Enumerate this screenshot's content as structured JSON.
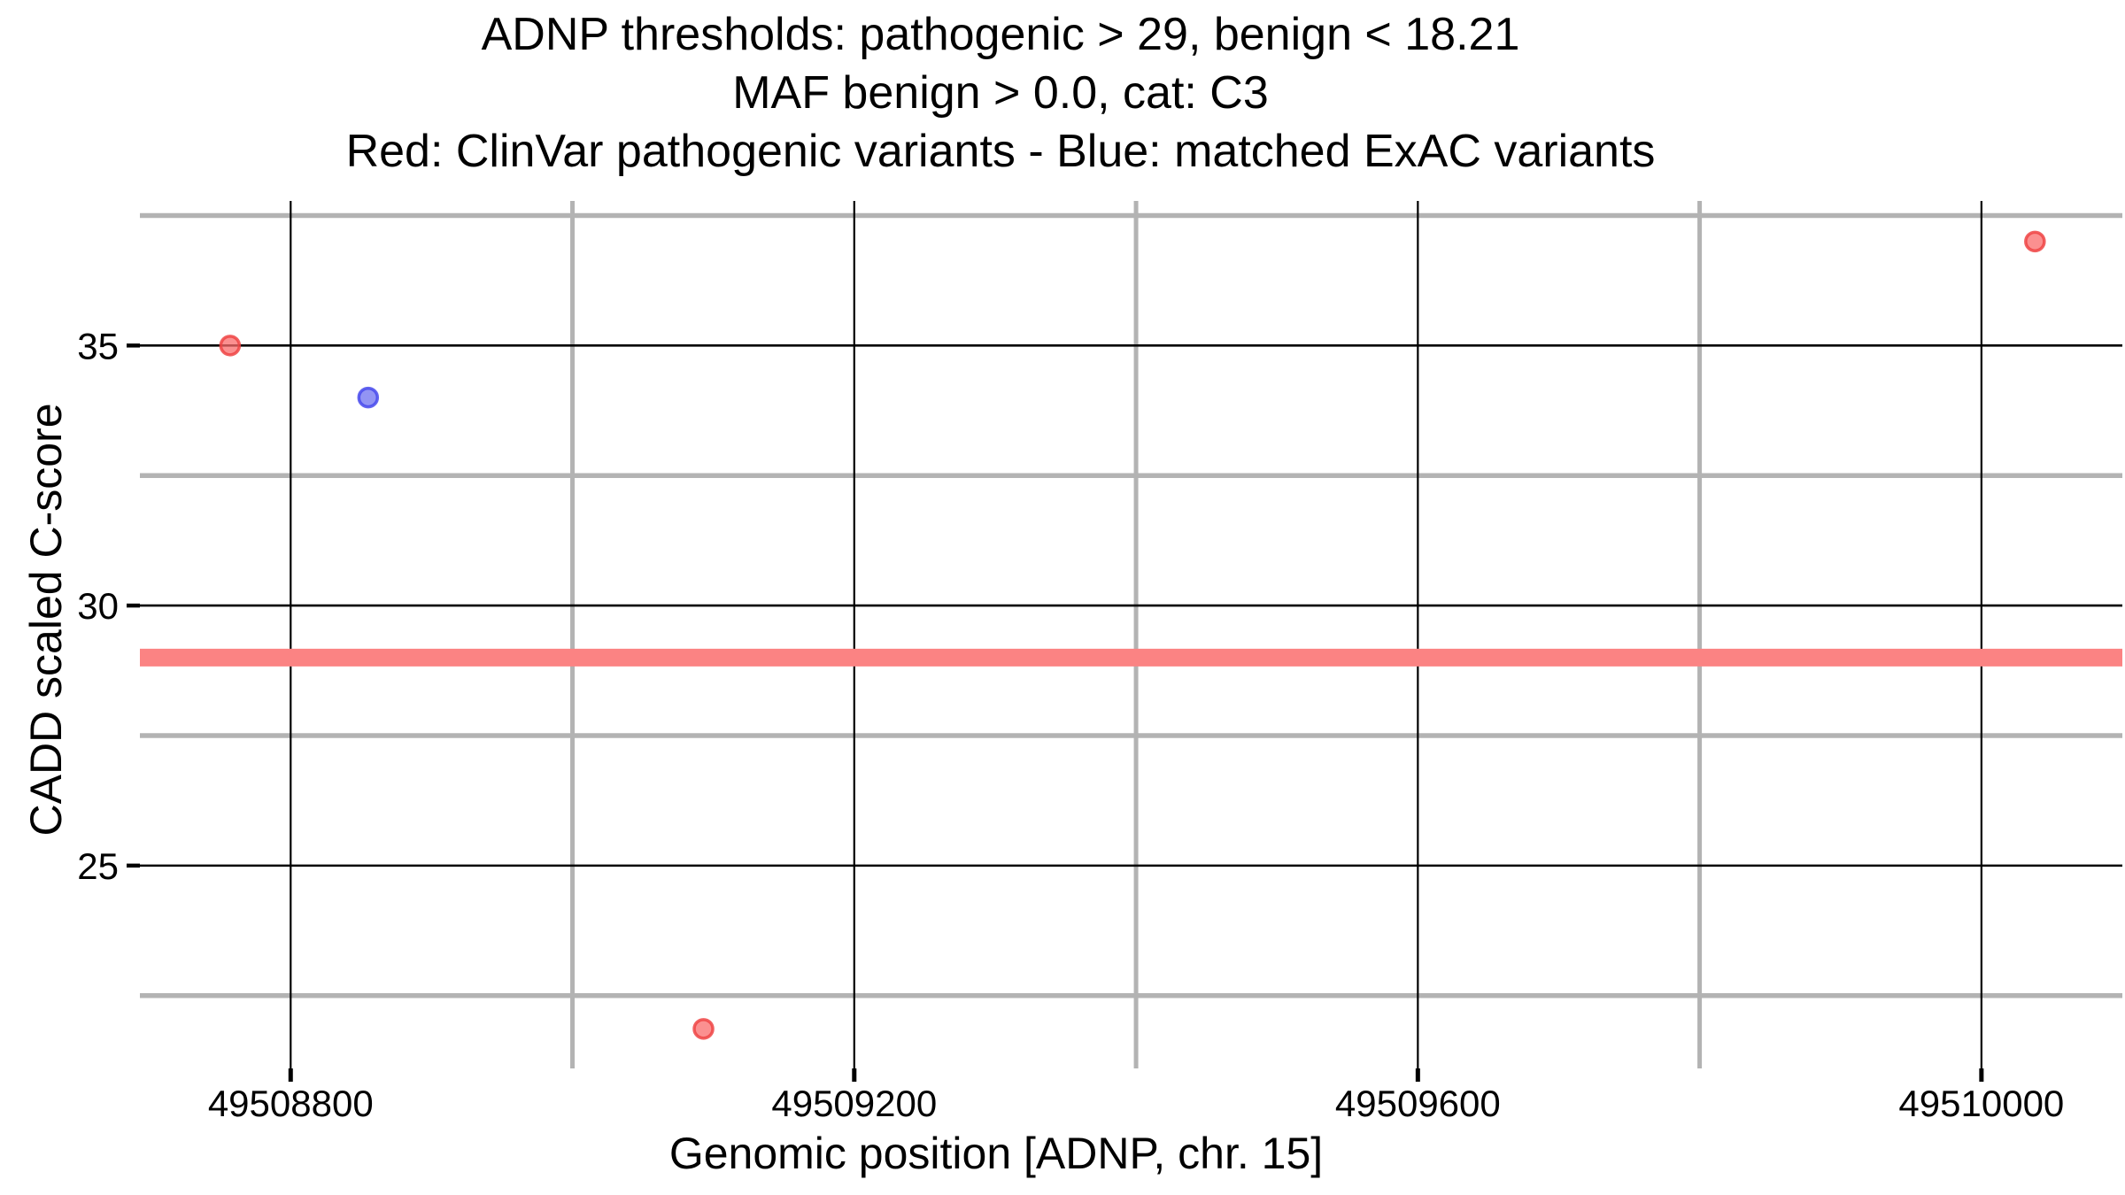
{
  "chart_data": {
    "type": "scatter",
    "title_lines": [
      "ADNP thresholds: pathogenic > 29, benign < 18.21",
      "MAF benign > 0.0, cat: C3",
      "Red: ClinVar pathogenic variants - Blue: matched ExAC variants"
    ],
    "xlabel": "Genomic position [ADNP, chr. 15]",
    "ylabel": "CADD scaled C-score",
    "x_domain": [
      49508693,
      49510100
    ],
    "y_domain": [
      21.1,
      37.78
    ],
    "x_major_ticks": [
      49508800,
      49509200,
      49509600,
      49510000
    ],
    "x_minor_gridlines": [
      49509000,
      49509400,
      49509800
    ],
    "y_major_ticks": [
      25,
      30,
      35
    ],
    "y_minor_gridlines": [
      22.5,
      27.5,
      32.5,
      37.5
    ],
    "grid": {
      "major_color": "#000000",
      "minor_color": "#b3b3b3"
    },
    "threshold_line": {
      "y": 29,
      "meaning": "pathogenic threshold",
      "color": "#fb8383"
    },
    "series": [
      {
        "name": "ClinVar pathogenic variants",
        "color": "#ef4444",
        "fill": "#f96b6b",
        "points": [
          {
            "x": 49508757,
            "y": 35.0
          },
          {
            "x": 49509093,
            "y": 21.86
          },
          {
            "x": 49510038,
            "y": 37.0
          }
        ]
      },
      {
        "name": "matched ExAC variants",
        "color": "#4649ec",
        "fill": "#6d70f0",
        "points": [
          {
            "x": 49508855,
            "y": 34.0
          }
        ]
      }
    ],
    "legend_position": "none",
    "thresholds_shown_in_title": {
      "pathogenic_greater_than": 29,
      "benign_less_than": 18.21,
      "maf_benign_greater_than": 0.0,
      "category": "C3",
      "gene": "ADNP"
    }
  }
}
